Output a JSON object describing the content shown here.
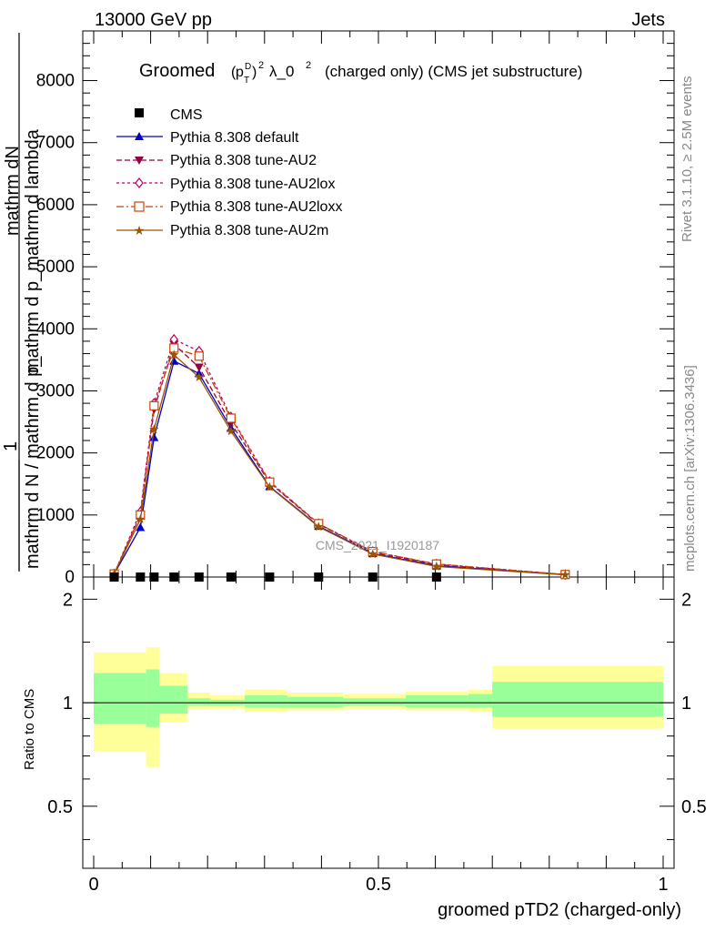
{
  "header": {
    "energy": "13000 GeV pp",
    "jets": "Jets",
    "rivet": "Rivet 3.1.10, ≥ 2.5M events",
    "mcplots": "mcplots.cern.ch [arXiv:1306.3436]",
    "analysis": "CMS_2021_I1920187"
  },
  "chart_data": {
    "type": "line",
    "title_prefix": "Groomed",
    "title_p": "p",
    "title_sup_d": "D",
    "title_sub_t": "T",
    "title_sq": "2",
    "title_lambda": "λ_0",
    "title_sq2": "2",
    "title_rest": "(charged only) (CMS jet substructure)",
    "ylabel_numerator": "mathrm dN",
    "ylabel_denominator": "mathrm d p_mathrm d lambda",
    "ylabel_prefix_num": "1",
    "ylabel_prefix_den": "mathrm d N / mathrm d p_",
    "xlabel": "groomed pTD2 (charged-only)",
    "ratio_ylabel": "Ratio to CMS",
    "xlim": [
      0,
      1
    ],
    "ylim": [
      0,
      8800
    ],
    "ratio_ylim": [
      0.33,
      2.32
    ],
    "x_ticks": [
      "0",
      "0.5",
      "1"
    ],
    "y_ticks": [
      "0",
      "1000",
      "2000",
      "3000",
      "4000",
      "5000",
      "6000",
      "7000",
      "8000"
    ],
    "ratio_ticks": [
      "0.5",
      "1",
      "2"
    ],
    "legend": {
      "cms": "CMS",
      "default": "Pythia 8.308 default",
      "au2": "Pythia 8.308 tune-AU2",
      "au2lox": "Pythia 8.308 tune-AU2lox",
      "au2loxx": "Pythia 8.308 tune-AU2loxx",
      "au2m": "Pythia 8.308 tune-AU2m"
    },
    "cms_points": [
      {
        "x": 0.036,
        "y": 0
      },
      {
        "x": 0.082,
        "y": 0
      },
      {
        "x": 0.106,
        "y": 0
      },
      {
        "x": 0.141,
        "y": 0
      },
      {
        "x": 0.185,
        "y": 0
      },
      {
        "x": 0.241,
        "y": 0
      },
      {
        "x": 0.309,
        "y": 0
      },
      {
        "x": 0.395,
        "y": 0
      },
      {
        "x": 0.49,
        "y": 0
      },
      {
        "x": 0.602,
        "y": 0
      }
    ],
    "series": [
      {
        "name": "Pythia 8.308 default",
        "color": "#0000cc",
        "dash": "",
        "marker": "triangle-up",
        "x": [
          0.036,
          0.082,
          0.106,
          0.141,
          0.185,
          0.241,
          0.309,
          0.395,
          0.49,
          0.602,
          0.828
        ],
        "y": [
          50,
          800,
          2250,
          3480,
          3280,
          2400,
          1460,
          820,
          380,
          180,
          40
        ]
      },
      {
        "name": "Pythia 8.308 tune-AU2",
        "color": "#990044",
        "dash": "6,3",
        "marker": "triangle-down",
        "x": [
          0.036,
          0.082,
          0.106,
          0.141,
          0.185,
          0.241,
          0.309,
          0.395,
          0.49,
          0.602,
          0.828
        ],
        "y": [
          50,
          1000,
          2700,
          3750,
          3380,
          2480,
          1520,
          850,
          400,
          200,
          40
        ]
      },
      {
        "name": "Pythia 8.308 tune-AU2lox",
        "color": "#bb0066",
        "dash": "3,3",
        "marker": "diamond",
        "x": [
          0.036,
          0.082,
          0.106,
          0.141,
          0.185,
          0.241,
          0.309,
          0.395,
          0.49,
          0.602,
          0.828
        ],
        "y": [
          50,
          1050,
          2800,
          3830,
          3640,
          2580,
          1540,
          860,
          410,
          210,
          40
        ]
      },
      {
        "name": "Pythia 8.308 tune-AU2loxx",
        "color": "#cc4400",
        "dash": "8,3,2,3",
        "marker": "square-open",
        "x": [
          0.036,
          0.082,
          0.106,
          0.141,
          0.185,
          0.241,
          0.309,
          0.395,
          0.49,
          0.602,
          0.828
        ],
        "y": [
          50,
          1000,
          2760,
          3690,
          3560,
          2560,
          1530,
          860,
          410,
          210,
          40
        ]
      },
      {
        "name": "Pythia 8.308 tune-AU2m",
        "color": "#995500",
        "dash": "",
        "marker": "star",
        "x": [
          0.036,
          0.082,
          0.106,
          0.141,
          0.185,
          0.241,
          0.309,
          0.395,
          0.49,
          0.602,
          0.828
        ],
        "y": [
          50,
          930,
          2380,
          3580,
          3220,
          2350,
          1450,
          810,
          370,
          170,
          35
        ]
      }
    ],
    "ratio_bands": [
      {
        "x0": 0.0,
        "x1": 0.092,
        "y_lo": 0.72,
        "y_hi": 1.4,
        "g_lo": 0.87,
        "g_hi": 1.22
      },
      {
        "x0": 0.092,
        "x1": 0.115,
        "y_lo": 0.65,
        "y_hi": 1.45,
        "g_lo": 0.85,
        "g_hi": 1.25
      },
      {
        "x0": 0.115,
        "x1": 0.165,
        "y_lo": 0.88,
        "y_hi": 1.22,
        "g_lo": 0.93,
        "g_hi": 1.12
      },
      {
        "x0": 0.165,
        "x1": 0.205,
        "y_lo": 0.96,
        "y_hi": 1.07,
        "g_lo": 0.98,
        "g_hi": 1.03
      },
      {
        "x0": 0.205,
        "x1": 0.265,
        "y_lo": 0.96,
        "y_hi": 1.05,
        "g_lo": 0.98,
        "g_hi": 1.02
      },
      {
        "x0": 0.265,
        "x1": 0.34,
        "y_lo": 0.94,
        "y_hi": 1.09,
        "g_lo": 0.97,
        "g_hi": 1.05
      },
      {
        "x0": 0.34,
        "x1": 0.438,
        "y_lo": 0.95,
        "y_hi": 1.07,
        "g_lo": 0.97,
        "g_hi": 1.04
      },
      {
        "x0": 0.438,
        "x1": 0.548,
        "y_lo": 0.96,
        "y_hi": 1.06,
        "g_lo": 0.98,
        "g_hi": 1.03
      },
      {
        "x0": 0.548,
        "x1": 0.658,
        "y_lo": 0.95,
        "y_hi": 1.08,
        "g_lo": 0.97,
        "g_hi": 1.05
      },
      {
        "x0": 0.658,
        "x1": 0.7,
        "y_lo": 0.94,
        "y_hi": 1.09,
        "g_lo": 0.97,
        "g_hi": 1.06
      },
      {
        "x0": 0.7,
        "x1": 1.0,
        "y_lo": 0.84,
        "y_hi": 1.28,
        "g_lo": 0.91,
        "g_hi": 1.15
      }
    ],
    "colors": {
      "yellow": "#ffff99",
      "green": "#99ff99"
    }
  }
}
